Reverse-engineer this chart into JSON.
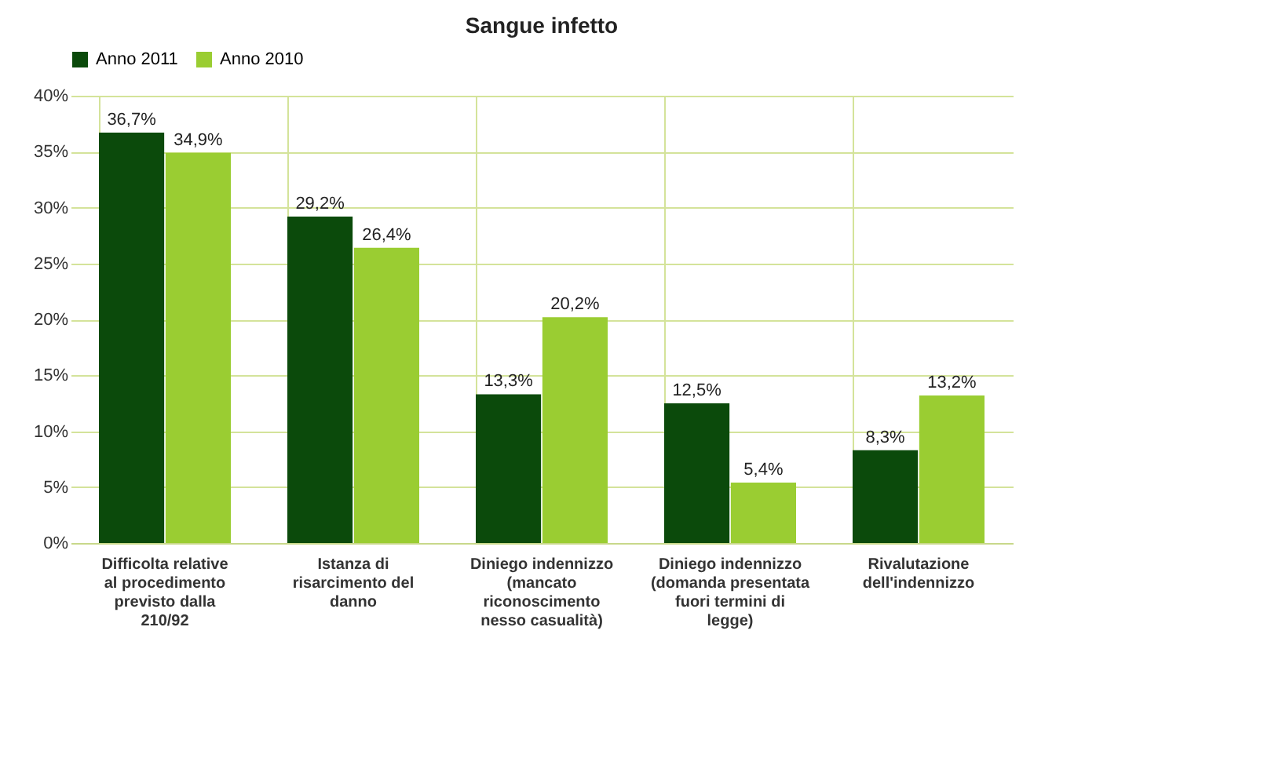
{
  "chart_data": {
    "type": "bar",
    "title": "Sangue infetto",
    "categories": [
      "Difficolta relative al procedimento previsto dalla 210/92",
      "Istanza di risarcimento del danno",
      "Diniego indennizzo (mancato riconoscimento nesso casualità)",
      "Diniego indennizzo (domanda presentata fuori termini di legge)",
      "Rivalutazione dell'indennizzo"
    ],
    "series": [
      {
        "name": "Anno 2011",
        "color": "#0b4a0b",
        "values": [
          36.7,
          29.2,
          13.3,
          12.5,
          8.3
        ],
        "value_labels": [
          "36,7%",
          "29,2%",
          "13,3%",
          "12,5%",
          "8,3%"
        ]
      },
      {
        "name": "Anno 2010",
        "color": "#9acd32",
        "values": [
          34.9,
          26.4,
          20.2,
          5.4,
          13.2
        ],
        "value_labels": [
          "34,9%",
          "26,4%",
          "20,2%",
          "5,4%",
          "13,2%"
        ]
      }
    ],
    "ylim": [
      0,
      40
    ],
    "yticks": [
      {
        "value": 0,
        "label": "0%"
      },
      {
        "value": 5,
        "label": "5%"
      },
      {
        "value": 10,
        "label": "10%"
      },
      {
        "value": 15,
        "label": "15%"
      },
      {
        "value": 20,
        "label": "20%"
      },
      {
        "value": 25,
        "label": "25%"
      },
      {
        "value": 30,
        "label": "30%"
      },
      {
        "value": 35,
        "label": "35%"
      },
      {
        "value": 40,
        "label": "40%"
      }
    ],
    "grid": true,
    "legend": "top"
  }
}
